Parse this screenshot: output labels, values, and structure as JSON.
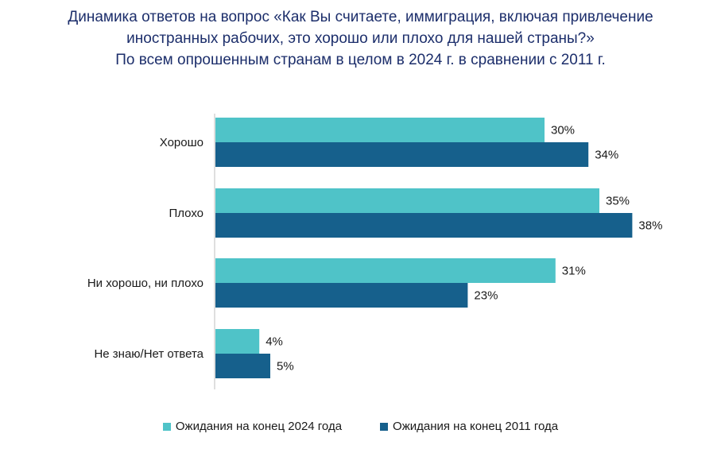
{
  "chart_data": {
    "type": "bar",
    "orientation": "horizontal",
    "title_lines": [
      "Динамика ответов на вопрос «Как Вы считаете, иммиграция, включая привлечение",
      "иностранных рабочих, это хорошо или плохо для нашей страны?»",
      "По всем опрошенным странам в целом в 2024 г. в сравнении с 2011 г."
    ],
    "categories": [
      "Хорошо",
      "Плохо",
      "Ни хорошо, ни плохо",
      "Не знаю/Нет ответа"
    ],
    "series": [
      {
        "name": "Ожидания на конец 2024 года",
        "color": "#4fc3c8",
        "values": [
          30,
          35,
          31,
          4
        ],
        "labels": [
          "30%",
          "35%",
          "31%",
          "4%"
        ]
      },
      {
        "name": "Ожидания на конец 2011 года",
        "color": "#16608c",
        "values": [
          34,
          38,
          23,
          5
        ],
        "labels": [
          "34%",
          "38%",
          "23%",
          "5%"
        ]
      }
    ],
    "xlim": [
      0,
      40
    ],
    "grid": false,
    "legend_position": "bottom",
    "title_color": "#1c2e6b"
  }
}
